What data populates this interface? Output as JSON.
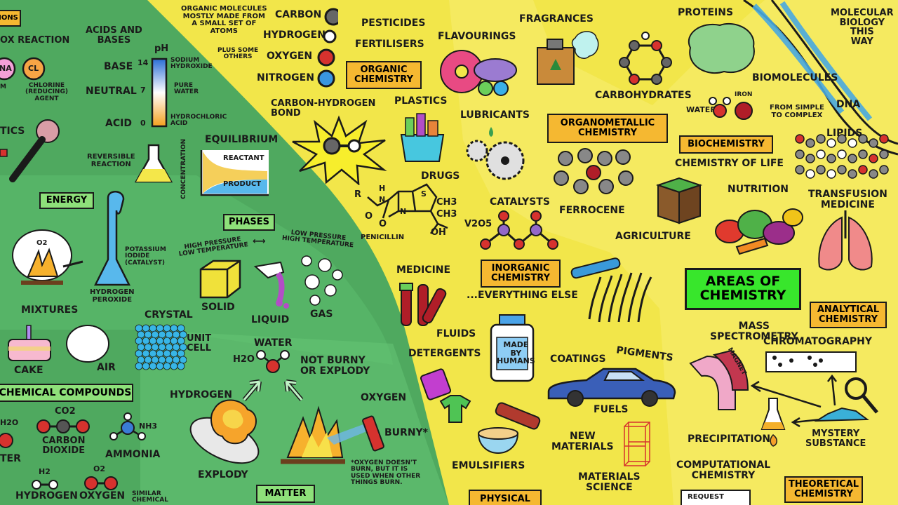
{
  "colors": {
    "physics_side": "#4fa95f",
    "physics_inner": "#5bbd6d",
    "chemistry_side": "#f2e64a",
    "biology_side": "#f6e960",
    "label_box_orange": "#f5b831",
    "label_box_green": "#8ee07a",
    "title_box": "#38e62c"
  },
  "labels": {
    "ions": "IONS",
    "redox_reaction": "OX REACTION",
    "na_ion": "Na",
    "cl_ion": "CL",
    "sodium_partial": "M",
    "chlorine_reducing": "CHLORINE\n(REDUCING)\nAGENT",
    "plastics_left": "TICS",
    "acids_and_bases": "ACIDS AND\nBASES",
    "ph": "pH",
    "base": "BASE",
    "neutral": "NEUTRAL",
    "acid": "ACID",
    "ph_14": "14",
    "ph_7": "7",
    "ph_0": "0",
    "sodium_hydroxide": "SODIUM\nHYDROXIDE",
    "pure_water": "PURE\nWATER",
    "hydrochloric_acid": "HYDROCHLORIC\nACID",
    "reversible_reaction": "REVERSIBLE\nREACTION",
    "equilibrium": "EQUILIBRIUM",
    "concentration": "CONCENTRATION",
    "reactant": "REACTANT",
    "product": "PRODUCT",
    "energy": "ENERGY",
    "o2_small": "O2",
    "potassium_iodide": "POTASSIUM\nIODIDE\n(CATALYST)",
    "hydrogen_peroxide": "HYDROGEN\nPEROXIDE",
    "phases": "PHASES",
    "high_pressure": "HIGH PRESSURE\nLOW TEMPERATURE",
    "phase_arrow": "⟷",
    "low_pressure": "LOW PRESSURE\nHIGH TEMPERATURE",
    "solid": "SOLID",
    "liquid": "LIQUID",
    "gas": "GAS",
    "mixtures": "MIXTURES",
    "crystal": "CRYSTAL",
    "unit_cell": "UNIT\nCELL",
    "cake": "CAKE",
    "air": "AIR",
    "chemical_compounds": "CHEMICAL COMPOUNDS",
    "h2o_left": "H2O",
    "water_partial": "TER",
    "co2": "CO2",
    "carbon_dioxide": "CARBON\nDIOXIDE",
    "nh3": "NH3",
    "ammonia": "AMMONIA",
    "h2": "H2",
    "o2": "O2",
    "hydrogen_bottom": "HYDROGEN",
    "oxygen_bottom": "OXYGEN",
    "similar_chemical": "SIMILAR\nCHEMICAL",
    "water": "WATER",
    "h2o_water": "H2O",
    "not_burny": "NOT BURNY\nOR EXPLODY",
    "hydrogen_mid": "HYDROGEN",
    "oxygen_mid": "OXYGEN",
    "explody": "EXPLODY",
    "burny": "BURNY*",
    "oxygen_footnote": "*OXYGEN DOESN'T\nBURN, BUT IT IS\nUSED WHEN OTHER\nTHINGS BURN.",
    "matter": "MATTER",
    "organic_molecules": "ORGANIC MOLECULES\nMOSTLY MADE FROM\nA SMALL SET OF\nATOMS",
    "plus_some_others": "PLUS SOME\nOTHERS",
    "carbon": "CARBON",
    "hydrogen": "HYDROGEN",
    "oxygen": "OXYGEN",
    "nitrogen": "NITROGEN",
    "pesticides": "PESTICIDES",
    "fertilisers": "FERTILISERS",
    "organic_chemistry": "ORGANIC\nCHEMISTRY",
    "flavourings": "FLAVOURINGS",
    "fragrances": "FRAGRANCES",
    "proteins": "PROTEINS",
    "molecular_biology": "MOLECULAR\nBIOLOGY\nTHIS\nWAY",
    "carbon_hydrogen_bond": "CARBON-HYDROGEN\nBOND",
    "plastics": "PLASTICS",
    "lubricants": "LUBRICANTS",
    "carbohydrates": "CARBOHYDRATES",
    "biomolecules": "BIOMOLECULES",
    "water_small": "WATER",
    "iron": "IRON",
    "simple_to_complex": "FROM SIMPLE\nTO COMPLEX",
    "dna": "DNA",
    "organometallic": "ORGANOMETALLIC\nCHEMISTRY",
    "lipids": "LIPIDS",
    "biochemistry": "BIOCHEMISTRY",
    "chemistry_of_life": "CHEMISTRY OF LIFE",
    "drugs": "DRUGS",
    "penicillin": "PENICILLIN",
    "catalysts": "CATALYSTS",
    "v2o5": "V2O5",
    "ferrocene": "FERROCENE",
    "nutrition": "NUTRITION",
    "transfusion_medicine": "TRANSFUSION\nMEDICINE",
    "agriculture": "AGRICULTURE",
    "medicine": "MEDICINE",
    "inorganic_chemistry": "INORGANIC\nCHEMISTRY",
    "everything_else": "...EVERYTHING ELSE",
    "areas_of_chemistry": "AREAS OF\nCHEMISTRY",
    "analytical_chemistry": "ANALYTICAL\nCHEMISTRY",
    "fluids": "FLUIDS",
    "detergents": "DETERGENTS",
    "made_by_humans": "MADE\nBY\nHUMANS",
    "coatings": "COATINGS",
    "pigments": "PIGMENTS",
    "mass_spectrometry": "MASS\nSPECTROMETRY",
    "magnet": "MAGNET",
    "chromatography": "CHROMATOGRAPHY",
    "fuels": "FUELS",
    "new_materials": "NEW\nMATERIALS",
    "precipitation": "PRECIPITATION",
    "mystery_substance": "MYSTERY\nSUBSTANCE",
    "emulsifiers": "EMULSIFIERS",
    "materials_science": "MATERIALS\nSCIENCE",
    "computational_chemistry": "COMPUTATIONAL\nCHEMISTRY",
    "theoretical_chemistry": "THEORETICAL\nCHEMISTRY",
    "physical_partial": "PHYSICAL",
    "request_partial": "REQUEST",
    "ch3_top": "CH3",
    "ch3_bottom": "CH3",
    "oh": "OH",
    "o_left": "O",
    "o_bottom": "O",
    "r": "R",
    "h": "H",
    "n1": "N",
    "n2": "N",
    "s": "S"
  }
}
